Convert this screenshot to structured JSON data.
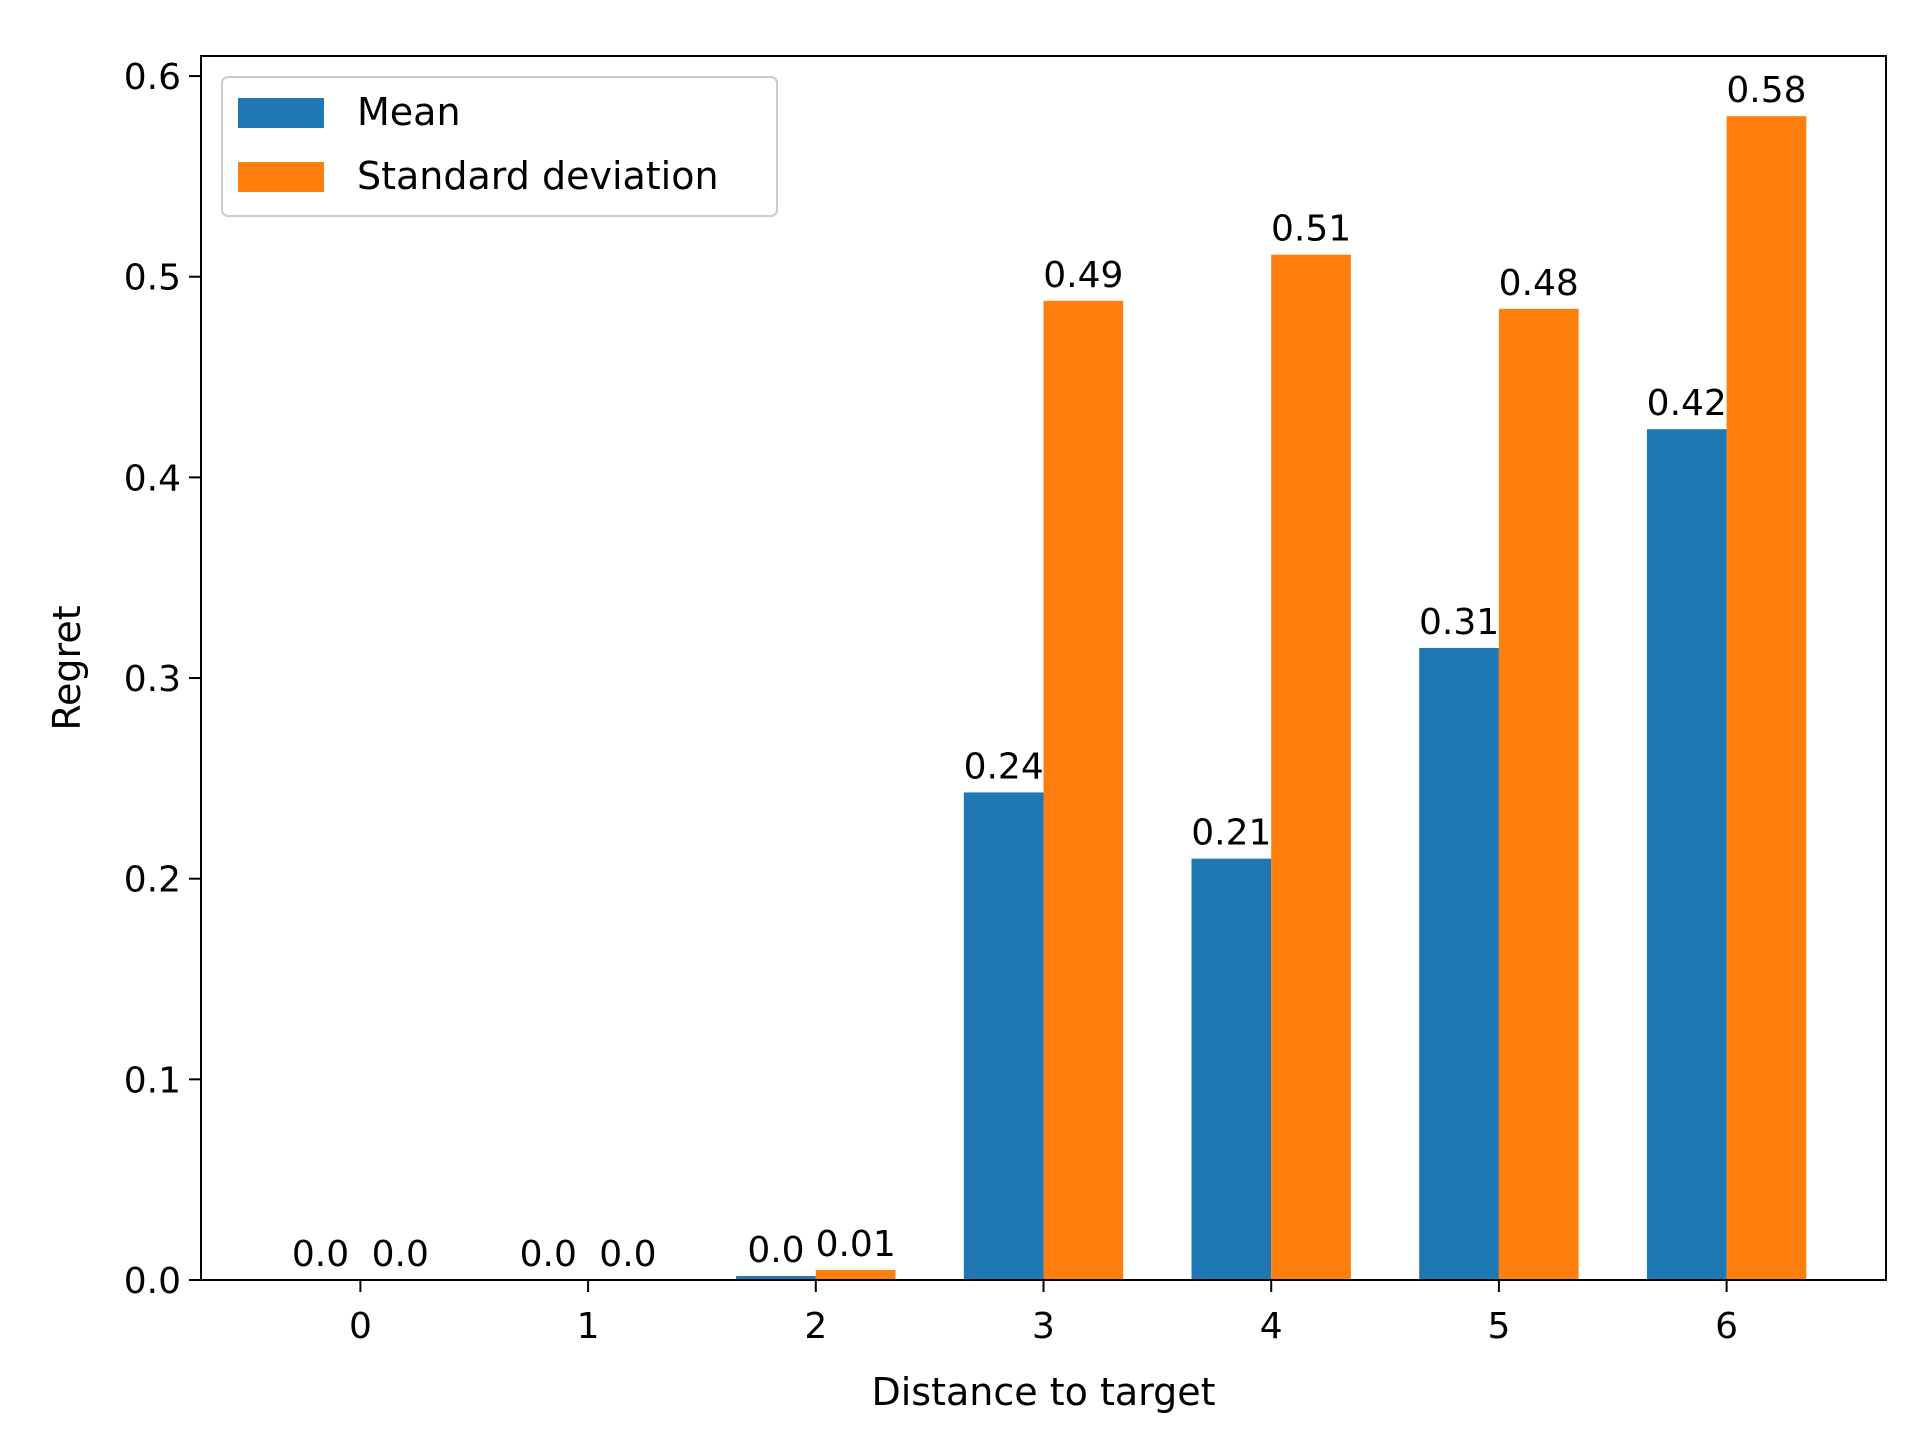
{
  "chart_data": {
    "type": "bar",
    "title": "",
    "xlabel": "Distance to target",
    "ylabel": "Regret",
    "categories": [
      "0",
      "1",
      "2",
      "3",
      "4",
      "5",
      "6"
    ],
    "series": [
      {
        "name": "Mean",
        "color": "#1f77b4",
        "values": [
          0.0,
          0.0,
          0.002,
          0.243,
          0.21,
          0.315,
          0.424
        ],
        "labels": [
          "0.0",
          "0.0",
          "0.0",
          "0.24",
          "0.21",
          "0.31",
          "0.42"
        ]
      },
      {
        "name": "Standard deviation",
        "color": "#ff7f0e",
        "values": [
          0.0,
          0.0,
          0.005,
          0.488,
          0.511,
          0.484,
          0.58
        ],
        "labels": [
          "0.0",
          "0.0",
          "0.01",
          "0.49",
          "0.51",
          "0.48",
          "0.58"
        ]
      }
    ],
    "ylim": [
      0,
      0.61
    ],
    "yticks": [
      "0.0",
      "0.1",
      "0.2",
      "0.3",
      "0.4",
      "0.5",
      "0.6"
    ],
    "ytick_values": [
      0.0,
      0.1,
      0.2,
      0.3,
      0.4,
      0.5,
      0.6
    ],
    "grid": false,
    "legend_position": "top-left"
  }
}
